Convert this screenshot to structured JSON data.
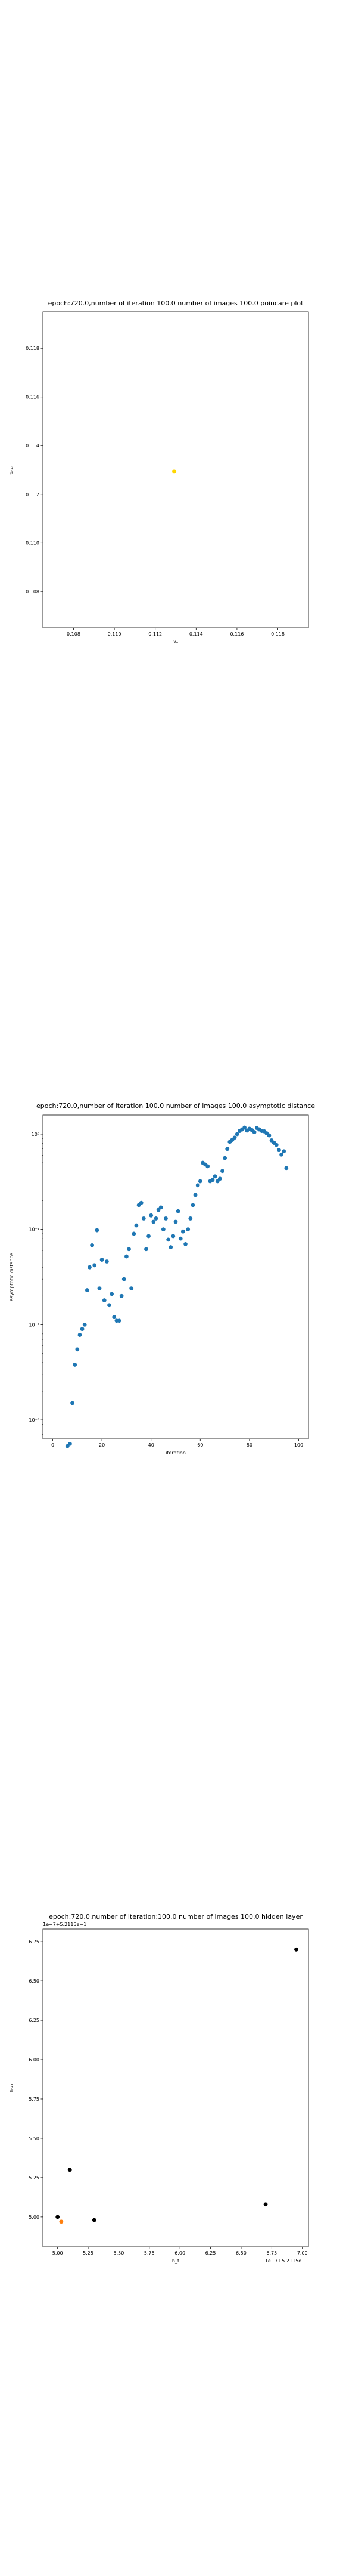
{
  "chart_data": [
    {
      "type": "scatter",
      "title": "epoch:720.0,number of iteration 100.0 number of images 100.0 poincare plot",
      "xlabel": "xₙ",
      "ylabel": "xₙ₊₁",
      "xlim": [
        0.1065,
        0.1195
      ],
      "ylim": [
        0.1065,
        0.1195
      ],
      "xticks": [
        0.108,
        0.11,
        0.112,
        0.114,
        0.116,
        0.118
      ],
      "xtick_labels": [
        "0.108",
        "0.110",
        "0.112",
        "0.114",
        "0.116",
        "0.118"
      ],
      "yticks": [
        0.108,
        0.11,
        0.112,
        0.114,
        0.116,
        0.118
      ],
      "ytick_labels": [
        "0.108",
        "0.110",
        "0.112",
        "0.114",
        "0.116",
        "0.118"
      ],
      "grid": false,
      "color": "#ffd700",
      "points": [
        [
          0.11293,
          0.11293
        ]
      ]
    },
    {
      "type": "scatter",
      "title": "epoch:720.0,number of iteration 100.0  number of images 100.0 asymptotic distance",
      "xlabel": "iteration",
      "ylabel": "asymptotic distance",
      "xlim": [
        -4,
        104
      ],
      "ylim_exp": [
        -3.2,
        0.2
      ],
      "yscale": "log",
      "xticks": [
        0,
        20,
        40,
        60,
        80,
        100
      ],
      "xtick_labels": [
        "0",
        "20",
        "40",
        "60",
        "80",
        "100"
      ],
      "yticks_exp": [
        -3,
        -2,
        -1,
        0
      ],
      "ytick_labels": [
        "10⁻³",
        "10⁻²",
        "10⁻¹",
        "10⁰"
      ],
      "grid": false,
      "color": "#1f77b4",
      "points": [
        [
          0,
          0.0016
        ],
        [
          1,
          0.0014
        ],
        [
          2,
          0.0015
        ],
        [
          3,
          0.0014
        ],
        [
          4,
          0.0017
        ],
        [
          5,
          0.0026
        ],
        [
          6,
          0.0053
        ],
        [
          7,
          0.0056
        ],
        [
          8,
          0.015
        ],
        [
          9,
          0.038
        ],
        [
          10,
          0.055
        ],
        [
          11,
          0.078
        ],
        [
          12,
          0.09
        ],
        [
          13,
          0.1
        ],
        [
          14,
          0.23
        ],
        [
          15,
          0.4
        ],
        [
          16,
          0.68
        ],
        [
          17,
          0.42
        ],
        [
          18,
          0.98
        ],
        [
          19,
          0.24
        ],
        [
          20,
          0.48
        ],
        [
          21,
          0.18
        ],
        [
          22,
          0.46
        ],
        [
          23,
          0.16
        ],
        [
          24,
          0.21
        ],
        [
          25,
          0.12
        ],
        [
          26,
          0.11
        ],
        [
          27,
          0.11
        ],
        [
          28,
          0.2
        ],
        [
          29,
          0.3
        ],
        [
          30,
          0.52
        ],
        [
          31,
          0.62
        ],
        [
          32,
          0.24
        ],
        [
          33,
          0.9
        ],
        [
          34,
          1.1
        ],
        [
          35,
          1.8
        ],
        [
          36,
          1.9
        ],
        [
          37,
          1.3
        ],
        [
          38,
          0.62
        ],
        [
          39,
          0.85
        ],
        [
          40,
          1.4
        ],
        [
          41,
          1.2
        ],
        [
          42,
          1.3
        ],
        [
          43,
          1.6
        ],
        [
          44,
          1.7
        ],
        [
          45,
          1.0
        ],
        [
          46,
          1.3
        ],
        [
          47,
          0.78
        ],
        [
          48,
          0.65
        ],
        [
          49,
          0.85
        ],
        [
          50,
          1.2
        ],
        [
          51,
          1.55
        ],
        [
          52,
          0.8
        ],
        [
          53,
          0.95
        ],
        [
          54,
          0.7
        ],
        [
          55,
          1.0
        ],
        [
          56,
          1.3
        ],
        [
          57,
          1.8
        ],
        [
          58,
          2.3
        ],
        [
          59,
          2.9
        ],
        [
          60,
          3.2
        ],
        [
          61,
          5.0
        ],
        [
          62,
          4.8
        ],
        [
          63,
          4.6
        ],
        [
          64,
          3.2
        ],
        [
          65,
          3.3
        ],
        [
          66,
          3.6
        ],
        [
          67,
          3.2
        ],
        [
          68,
          3.4
        ],
        [
          69,
          4.1
        ],
        [
          70,
          5.6
        ],
        [
          71,
          7.0
        ],
        [
          72,
          8.3
        ],
        [
          73,
          8.7
        ],
        [
          74,
          9.2
        ],
        [
          75,
          10.0
        ],
        [
          76,
          10.8
        ],
        [
          77,
          11.2
        ],
        [
          78,
          11.7
        ],
        [
          79,
          10.9
        ],
        [
          80,
          11.4
        ],
        [
          81,
          11.0
        ],
        [
          82,
          10.5
        ],
        [
          83,
          11.6
        ],
        [
          84,
          11.2
        ],
        [
          85,
          10.8
        ],
        [
          86,
          10.7
        ],
        [
          87,
          10.2
        ],
        [
          88,
          9.7
        ],
        [
          89,
          8.6
        ],
        [
          90,
          8.1
        ],
        [
          91,
          7.7
        ],
        [
          92,
          6.8
        ],
        [
          93,
          6.1
        ],
        [
          94,
          6.6
        ],
        [
          95,
          4.4
        ]
      ]
    },
    {
      "type": "scatter",
      "title": "epoch:720.0,number of iteration:100.0  number of images 100.0 hidden layer",
      "xlabel": "h_t",
      "ylabel": "hₜ₊₁",
      "offset_x_label": "1e−7+5.2115e−1",
      "offset_y_label": "1e−7+5.2115e−1",
      "xlim": [
        4.88,
        7.05
      ],
      "ylim": [
        4.81,
        6.83
      ],
      "xticks": [
        5.0,
        5.25,
        5.5,
        5.75,
        6.0,
        6.25,
        6.5,
        6.75,
        7.0
      ],
      "xtick_labels": [
        "5.00",
        "5.25",
        "5.50",
        "5.75",
        "6.00",
        "6.25",
        "6.50",
        "6.75",
        "7.00"
      ],
      "yticks": [
        5.0,
        5.25,
        5.5,
        5.75,
        6.0,
        6.25,
        6.5,
        6.75
      ],
      "ytick_labels": [
        "5.00",
        "5.25",
        "5.50",
        "5.75",
        "6.00",
        "6.25",
        "6.50",
        "6.75"
      ],
      "grid": false,
      "points": [
        {
          "x": 5.0,
          "y": 5.0,
          "color": "#000000"
        },
        {
          "x": 5.03,
          "y": 4.97,
          "color": "#ff7f0e"
        },
        {
          "x": 5.1,
          "y": 5.3,
          "color": "#000000"
        },
        {
          "x": 5.3,
          "y": 4.98,
          "color": "#000000"
        },
        {
          "x": 6.7,
          "y": 5.08,
          "color": "#000000"
        },
        {
          "x": 6.95,
          "y": 6.7,
          "color": "#000000"
        }
      ]
    }
  ]
}
